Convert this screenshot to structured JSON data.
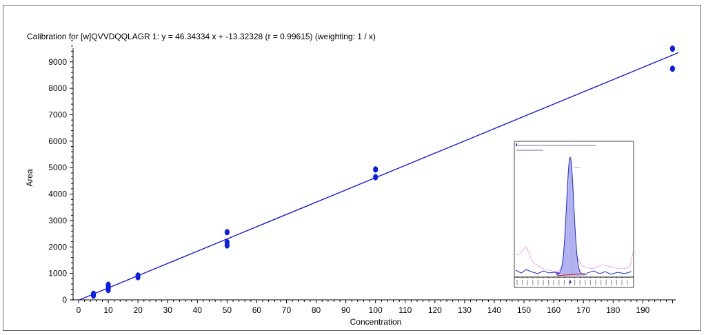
{
  "chart_data": {
    "type": "scatter",
    "title": "Calibration for [w]QVVDQQLAGR 1: y = 46.34334 x + -13.32328 (r = 0.99615)  (weighting: 1 / x)",
    "xlabel": "Concentration",
    "ylabel": "Area",
    "xlim": [
      0,
      200
    ],
    "ylim": [
      0,
      9900
    ],
    "x_ticks": [
      0,
      10,
      20,
      30,
      40,
      50,
      60,
      70,
      80,
      90,
      100,
      110,
      120,
      130,
      140,
      150,
      160,
      170,
      180,
      190
    ],
    "y_ticks": [
      0,
      1000,
      2000,
      3000,
      4000,
      5000,
      6000,
      7000,
      8000,
      9000
    ],
    "grid": false,
    "colors": {
      "points": "#0a1ee6",
      "fit_line": "#1a1ad6"
    },
    "series": [
      {
        "points": [
          {
            "x": 5,
            "y": 230
          },
          {
            "x": 5,
            "y": 160
          },
          {
            "x": 10,
            "y": 570
          },
          {
            "x": 10,
            "y": 460
          },
          {
            "x": 10,
            "y": 370
          },
          {
            "x": 20,
            "y": 920
          },
          {
            "x": 20,
            "y": 860
          },
          {
            "x": 50,
            "y": 2560
          },
          {
            "x": 50,
            "y": 2180
          },
          {
            "x": 50,
            "y": 2060
          },
          {
            "x": 100,
            "y": 4930
          },
          {
            "x": 100,
            "y": 4640
          },
          {
            "x": 200,
            "y": 9500
          },
          {
            "x": 200,
            "y": 8740
          }
        ]
      }
    ],
    "fit_line": {
      "slope": 46.34334,
      "intercept": -13.32328,
      "x_range": [
        0,
        202
      ]
    },
    "inset": {
      "type": "chromatogram",
      "header_lines": [],
      "peak_label": ""
    }
  }
}
